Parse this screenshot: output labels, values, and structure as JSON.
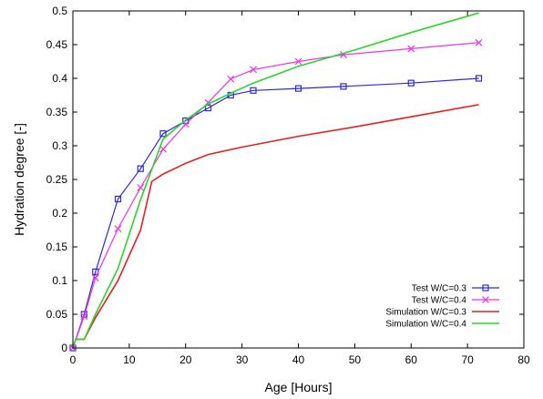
{
  "chart_data": {
    "type": "line",
    "title": "",
    "xlabel": "Age [Hours]",
    "ylabel": "Hydration degree [-]",
    "xlim": [
      0,
      80
    ],
    "ylim": [
      0,
      0.5
    ],
    "x_ticks": [
      0,
      10,
      20,
      30,
      40,
      50,
      60,
      70,
      80
    ],
    "y_ticks": [
      0,
      0.05,
      0.1,
      0.15,
      0.2,
      0.25,
      0.3,
      0.35,
      0.4,
      0.45,
      0.5
    ],
    "x_tick_labels": [
      "0",
      "10",
      "20",
      "30",
      "40",
      "50",
      "60",
      "70",
      "80"
    ],
    "y_tick_labels": [
      "0",
      "0.05",
      "0.1",
      "0.15",
      "0.2",
      "0.25",
      "0.3",
      "0.35",
      "0.4",
      "0.45",
      "0.5"
    ],
    "grid": false,
    "legend_position": "bottom-right",
    "series": [
      {
        "name": "Test W/C=0.3",
        "color": "#2b2bd6",
        "marker": "square",
        "x": [
          0,
          2,
          4,
          8,
          12,
          16,
          20,
          24,
          28,
          32,
          40,
          48,
          60,
          72
        ],
        "y": [
          0,
          0.05,
          0.113,
          0.221,
          0.266,
          0.318,
          0.337,
          0.356,
          0.375,
          0.382,
          0.385,
          0.388,
          0.393,
          0.4
        ]
      },
      {
        "name": "Test W/C=0.4",
        "color": "#ee33ee",
        "marker": "cross",
        "x": [
          0,
          2,
          4,
          8,
          12,
          16,
          20,
          24,
          28,
          32,
          40,
          48,
          60,
          72
        ],
        "y": [
          0,
          0.047,
          0.104,
          0.177,
          0.238,
          0.295,
          0.332,
          0.364,
          0.399,
          0.413,
          0.425,
          0.435,
          0.444,
          0.453
        ]
      },
      {
        "name": "Simulation W/C=0.3",
        "color": "#e62020",
        "marker": "none",
        "x": [
          0,
          0.5,
          2,
          4,
          8,
          12,
          14,
          16,
          20,
          24,
          30,
          40,
          50,
          60,
          72
        ],
        "y": [
          0,
          0.013,
          0.013,
          0.045,
          0.1,
          0.175,
          0.247,
          0.258,
          0.274,
          0.287,
          0.298,
          0.314,
          0.328,
          0.343,
          0.361
        ]
      },
      {
        "name": "Simulation W/C=0.4",
        "color": "#2bd62b",
        "marker": "none",
        "x": [
          0,
          0.5,
          2,
          4,
          8,
          12,
          16,
          20,
          24,
          28,
          32,
          40,
          50,
          60,
          72
        ],
        "y": [
          0,
          0.013,
          0.013,
          0.05,
          0.118,
          0.22,
          0.31,
          0.338,
          0.362,
          0.378,
          0.393,
          0.418,
          0.442,
          0.468,
          0.497
        ]
      }
    ]
  }
}
